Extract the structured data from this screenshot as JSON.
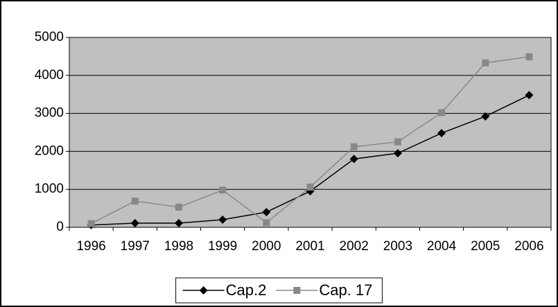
{
  "chart_data": {
    "type": "line",
    "categories": [
      "1996",
      "1997",
      "1998",
      "1999",
      "2000",
      "2001",
      "2002",
      "2003",
      "2004",
      "2005",
      "2006"
    ],
    "series": [
      {
        "name": "Cap.2",
        "color": "#000000",
        "marker": "diamond",
        "values": [
          60,
          110,
          110,
          200,
          400,
          950,
          1800,
          1950,
          2480,
          2920,
          3480
        ]
      },
      {
        "name": "Cap. 17",
        "color": "#888888",
        "marker": "square",
        "values": [
          100,
          690,
          530,
          980,
          120,
          1060,
          2120,
          2250,
          3020,
          4330,
          4490
        ]
      }
    ],
    "ylim": [
      0,
      5000
    ],
    "yticks": [
      0,
      1000,
      2000,
      3000,
      4000,
      5000
    ],
    "grid": true,
    "plot_background": "#c0c0c0",
    "legend": "bottom"
  }
}
